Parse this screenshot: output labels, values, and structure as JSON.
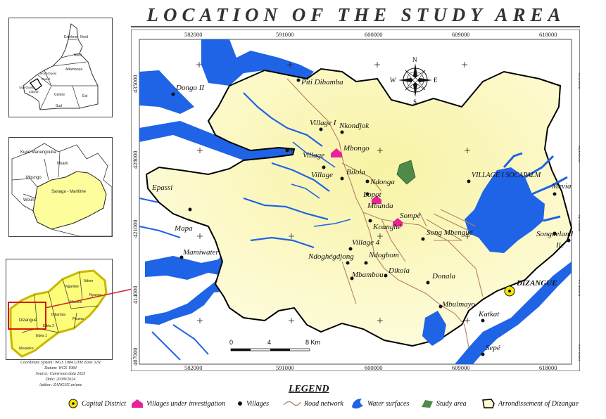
{
  "title": "LOCATION OF THE STUDY AREA",
  "grid": {
    "x_ticks": [
      "582000",
      "591000",
      "600000",
      "609000",
      "618000"
    ],
    "y_ticks": [
      "435000",
      "428000",
      "421000",
      "414000",
      "407000"
    ]
  },
  "compass": {
    "n": "N",
    "s": "S",
    "e": "E",
    "w": "W"
  },
  "scale_bar": {
    "ticks": [
      "0",
      "4",
      "8 Km"
    ]
  },
  "places": [
    {
      "name": "Dongo II",
      "kind": "village"
    },
    {
      "name": "Piti Dibamba",
      "kind": "village"
    },
    {
      "name": "Village I",
      "kind": "village"
    },
    {
      "name": "Nkondjok",
      "kind": "village"
    },
    {
      "name": "Village",
      "kind": "investigated"
    },
    {
      "name": "Mbongo",
      "kind": "investigated"
    },
    {
      "name": "Village",
      "kind": "village"
    },
    {
      "name": "Bilola",
      "kind": "village"
    },
    {
      "name": "Ndonga",
      "kind": "village"
    },
    {
      "name": "Lopot",
      "kind": "investigated"
    },
    {
      "name": "Mbunda",
      "kind": "village"
    },
    {
      "name": "Epassi",
      "kind": "label"
    },
    {
      "name": "Mapa",
      "kind": "village"
    },
    {
      "name": "Sompé",
      "kind": "investigated"
    },
    {
      "name": "Kounghé",
      "kind": "village"
    },
    {
      "name": "Song Mbengué",
      "kind": "village"
    },
    {
      "name": "VILLAGE I SOCAPALM",
      "kind": "village"
    },
    {
      "name": "Mevia",
      "kind": "village"
    },
    {
      "name": "Songueland",
      "kind": "village"
    },
    {
      "name": "Ile",
      "kind": "village"
    },
    {
      "name": "Mamiwater",
      "kind": "village"
    },
    {
      "name": "Village 4",
      "kind": "village"
    },
    {
      "name": "Ndoghégdjong",
      "kind": "village"
    },
    {
      "name": "Ndogbom",
      "kind": "village"
    },
    {
      "name": "Mbambou",
      "kind": "village"
    },
    {
      "name": "Dikola",
      "kind": "village"
    },
    {
      "name": "Donala",
      "kind": "village"
    },
    {
      "name": "DIZANGUE",
      "kind": "capital"
    },
    {
      "name": "Mbulmayo",
      "kind": "village"
    },
    {
      "name": "Katkat",
      "kind": "village"
    },
    {
      "name": "Sepé",
      "kind": "village"
    }
  ],
  "inset_a": {
    "regions": [
      "Extrême - Nord",
      "Nord",
      "Adamaoua",
      "Nord-Ouest",
      "Ouest",
      "Sud-Ouest",
      "Littoral",
      "Centre",
      "Est",
      "Sud"
    ]
  },
  "inset_b": {
    "regions": [
      "Kupé Manengouba",
      "Nkam",
      "Moungo",
      "Wouri",
      "Sanaga - Maritime"
    ]
  },
  "inset_c": {
    "regions": [
      "Dizangué",
      "Edéa 1",
      "Edéa 2",
      "Ngambe",
      "Ndom",
      "Nyanon",
      "Massok",
      "Pouma",
      "Dibamba",
      "Mouanko"
    ]
  },
  "notes": [
    "Coordinate System: WGS 1984 UTM Zone 32N",
    "Datum: WGS 1984",
    "Source: Cameroon data 2023",
    "Date: 20/09/2024",
    "Author: ZANGUE ariane"
  ],
  "legend": {
    "title": "LEGEND",
    "items": [
      {
        "label": "Capital District",
        "symbol": "capital-circle"
      },
      {
        "label": "Villages under investigation",
        "symbol": "house-pink"
      },
      {
        "label": "Villages",
        "symbol": "dot"
      },
      {
        "label": "Road network",
        "symbol": "brown-line"
      },
      {
        "label": "Water surfaces",
        "symbol": "blue-shape"
      },
      {
        "label": "Study area",
        "symbol": "green-patch"
      },
      {
        "label": "Arrondissement of Dizangue",
        "symbol": "outline-black"
      }
    ]
  },
  "colors": {
    "water": "#1f63e6",
    "district_fill": "#fdfbd0",
    "district_core": "#f8f3a4",
    "road": "#b28060",
    "study_area": "#4f8a4b",
    "investigated": "#e8239a",
    "highlight_inset": "#ffff8a",
    "arrow": "#cc2a2a"
  }
}
